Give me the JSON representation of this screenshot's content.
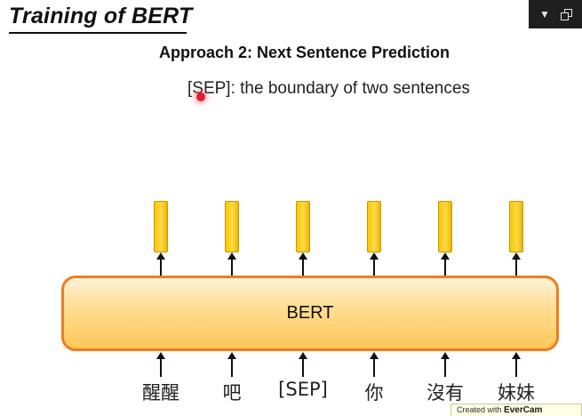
{
  "slide": {
    "title": "Training of BERT",
    "subtitle": "Approach 2: Next Sentence Prediction",
    "sep_description": "[SEP]: the boundary of two sentences",
    "model_label": "BERT",
    "tokens": [
      "醒醒",
      "吧",
      "[SEP]",
      "你",
      "沒有",
      "妹妹"
    ]
  },
  "window_controls": {
    "menu_glyph": "▼"
  },
  "overlay": {
    "evercam_prefix": "Created with",
    "evercam_brand": "EverCam"
  },
  "colors": {
    "bert_border": "#f07c1f",
    "bert_fill": "#ffd27a",
    "output_bar": "#f7c900",
    "pointer": "#e11d2e"
  }
}
